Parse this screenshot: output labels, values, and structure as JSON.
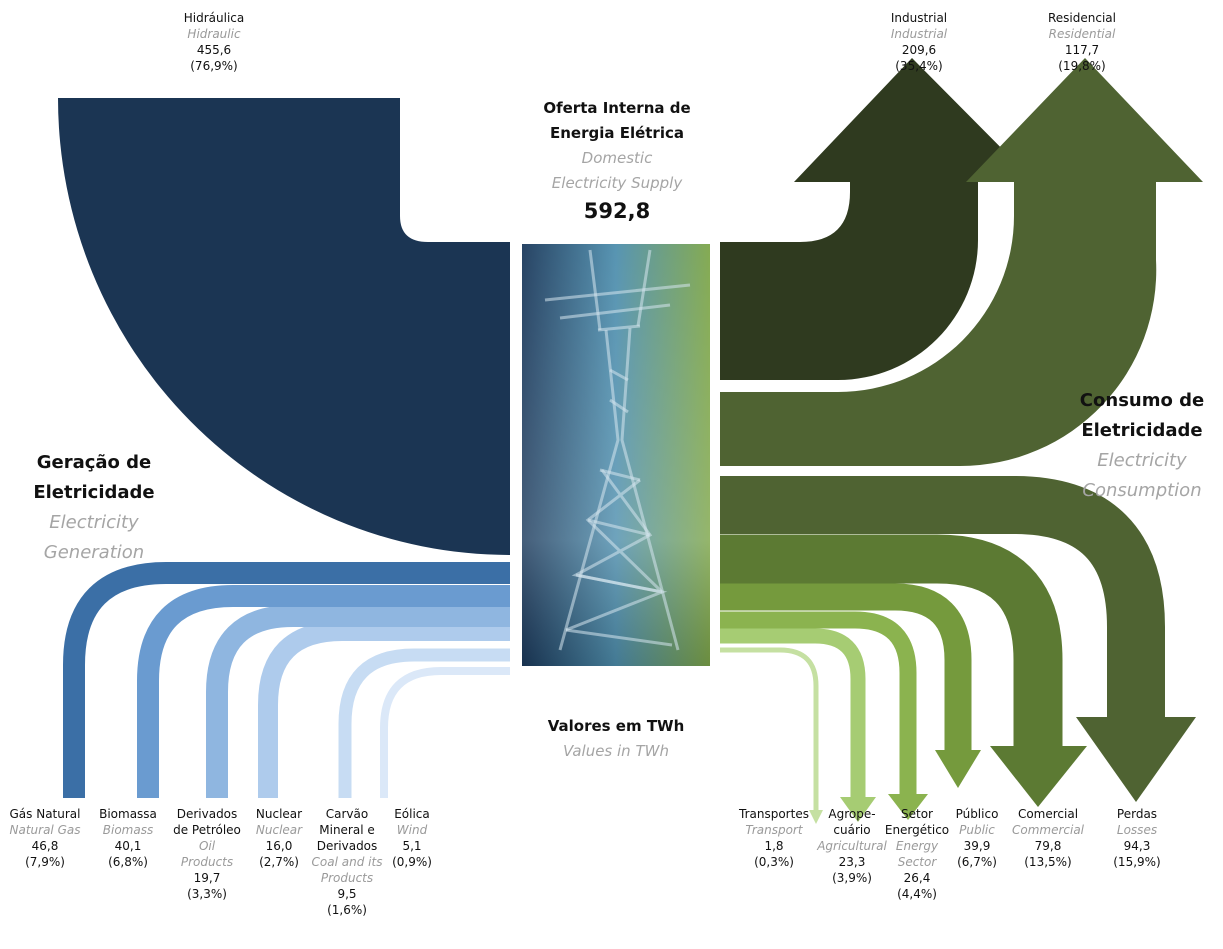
{
  "center": {
    "title_pt_1": "Oferta Interna de",
    "title_pt_2": "Energia Elétrica",
    "title_en_1": "Domestic",
    "title_en_2": "Electricity Supply",
    "total": "592,8"
  },
  "generation": {
    "title_pt_1": "Geração de",
    "title_pt_2": "Eletricidade",
    "title_en_1": "Electricity",
    "title_en_2": "Generation"
  },
  "consumption": {
    "title_pt_1": "Consumo de",
    "title_pt_2": "Eletricidade",
    "title_en_1": "Electricity",
    "title_en_2": "Consumption"
  },
  "units": {
    "pt": "Valores em TWh",
    "en": "Values in TWh"
  },
  "sources": [
    {
      "pt": "Hidráulica",
      "en": "Hidraulic",
      "value": "455,6",
      "pct": "(76,9%)"
    },
    {
      "pt": "Gás Natural",
      "en": "Natural Gas",
      "value": "46,8",
      "pct": "(7,9%)"
    },
    {
      "pt": "Biomassa",
      "en": "Biomass",
      "value": "40,1",
      "pct": "(6,8%)"
    },
    {
      "pt_1": "Derivados",
      "pt_2": "de Petróleo",
      "en_1": "Oil",
      "en_2": "Products",
      "value": "19,7",
      "pct": "(3,3%)"
    },
    {
      "pt": "Nuclear",
      "en": "Nuclear",
      "value": "16,0",
      "pct": "(2,7%)"
    },
    {
      "pt_1": "Carvão",
      "pt_2": "Mineral e",
      "pt_3": "Derivados",
      "en_1": "Coal and its",
      "en_2": "Products",
      "value": "9,5",
      "pct": "(1,6%)"
    },
    {
      "pt": "Eólica",
      "en": "Wind",
      "value": "5,1",
      "pct": "(0,9%)"
    }
  ],
  "uses": [
    {
      "pt": "Industrial",
      "en": "Industrial",
      "value": "209,6",
      "pct": "(35,4%)"
    },
    {
      "pt": "Residencial",
      "en": "Residential",
      "value": "117,7",
      "pct": "(19,8%)"
    },
    {
      "pt": "Transportes",
      "en": "Transport",
      "value": "1,8",
      "pct": "(0,3%)"
    },
    {
      "pt_1": "Agrope-",
      "pt_2": "cuário",
      "en": "Agricultural",
      "value": "23,3",
      "pct": "(3,9%)"
    },
    {
      "pt_1": "Setor",
      "pt_2": "Energético",
      "en_1": "Energy",
      "en_2": "Sector",
      "value": "26,4",
      "pct": "(4,4%)"
    },
    {
      "pt": "Público",
      "en": "Public",
      "value": "39,9",
      "pct": "(6,7%)"
    },
    {
      "pt": "Comercial",
      "en": "Commercial",
      "value": "79,8",
      "pct": "(13,5%)"
    },
    {
      "pt": "Perdas",
      "en": "Losses",
      "value": "94,3",
      "pct": "(15,9%)"
    }
  ],
  "colors": {
    "hydro": "#1b3553",
    "natural_gas": "#3b6fa6",
    "biomass": "#6a9bd0",
    "oil": "#8fb6e0",
    "nuclear": "#aecbec",
    "coal": "#c7dcf3",
    "wind": "#dbe8f8",
    "industrial": "#2f3a1f",
    "residential": "#4f6332",
    "losses": "#4f6332",
    "commercial": "#5c7a33",
    "public": "#759a3d",
    "energy_sector": "#8bb34f",
    "agricultural": "#a6cc73",
    "transport": "#c5e0a2"
  }
}
